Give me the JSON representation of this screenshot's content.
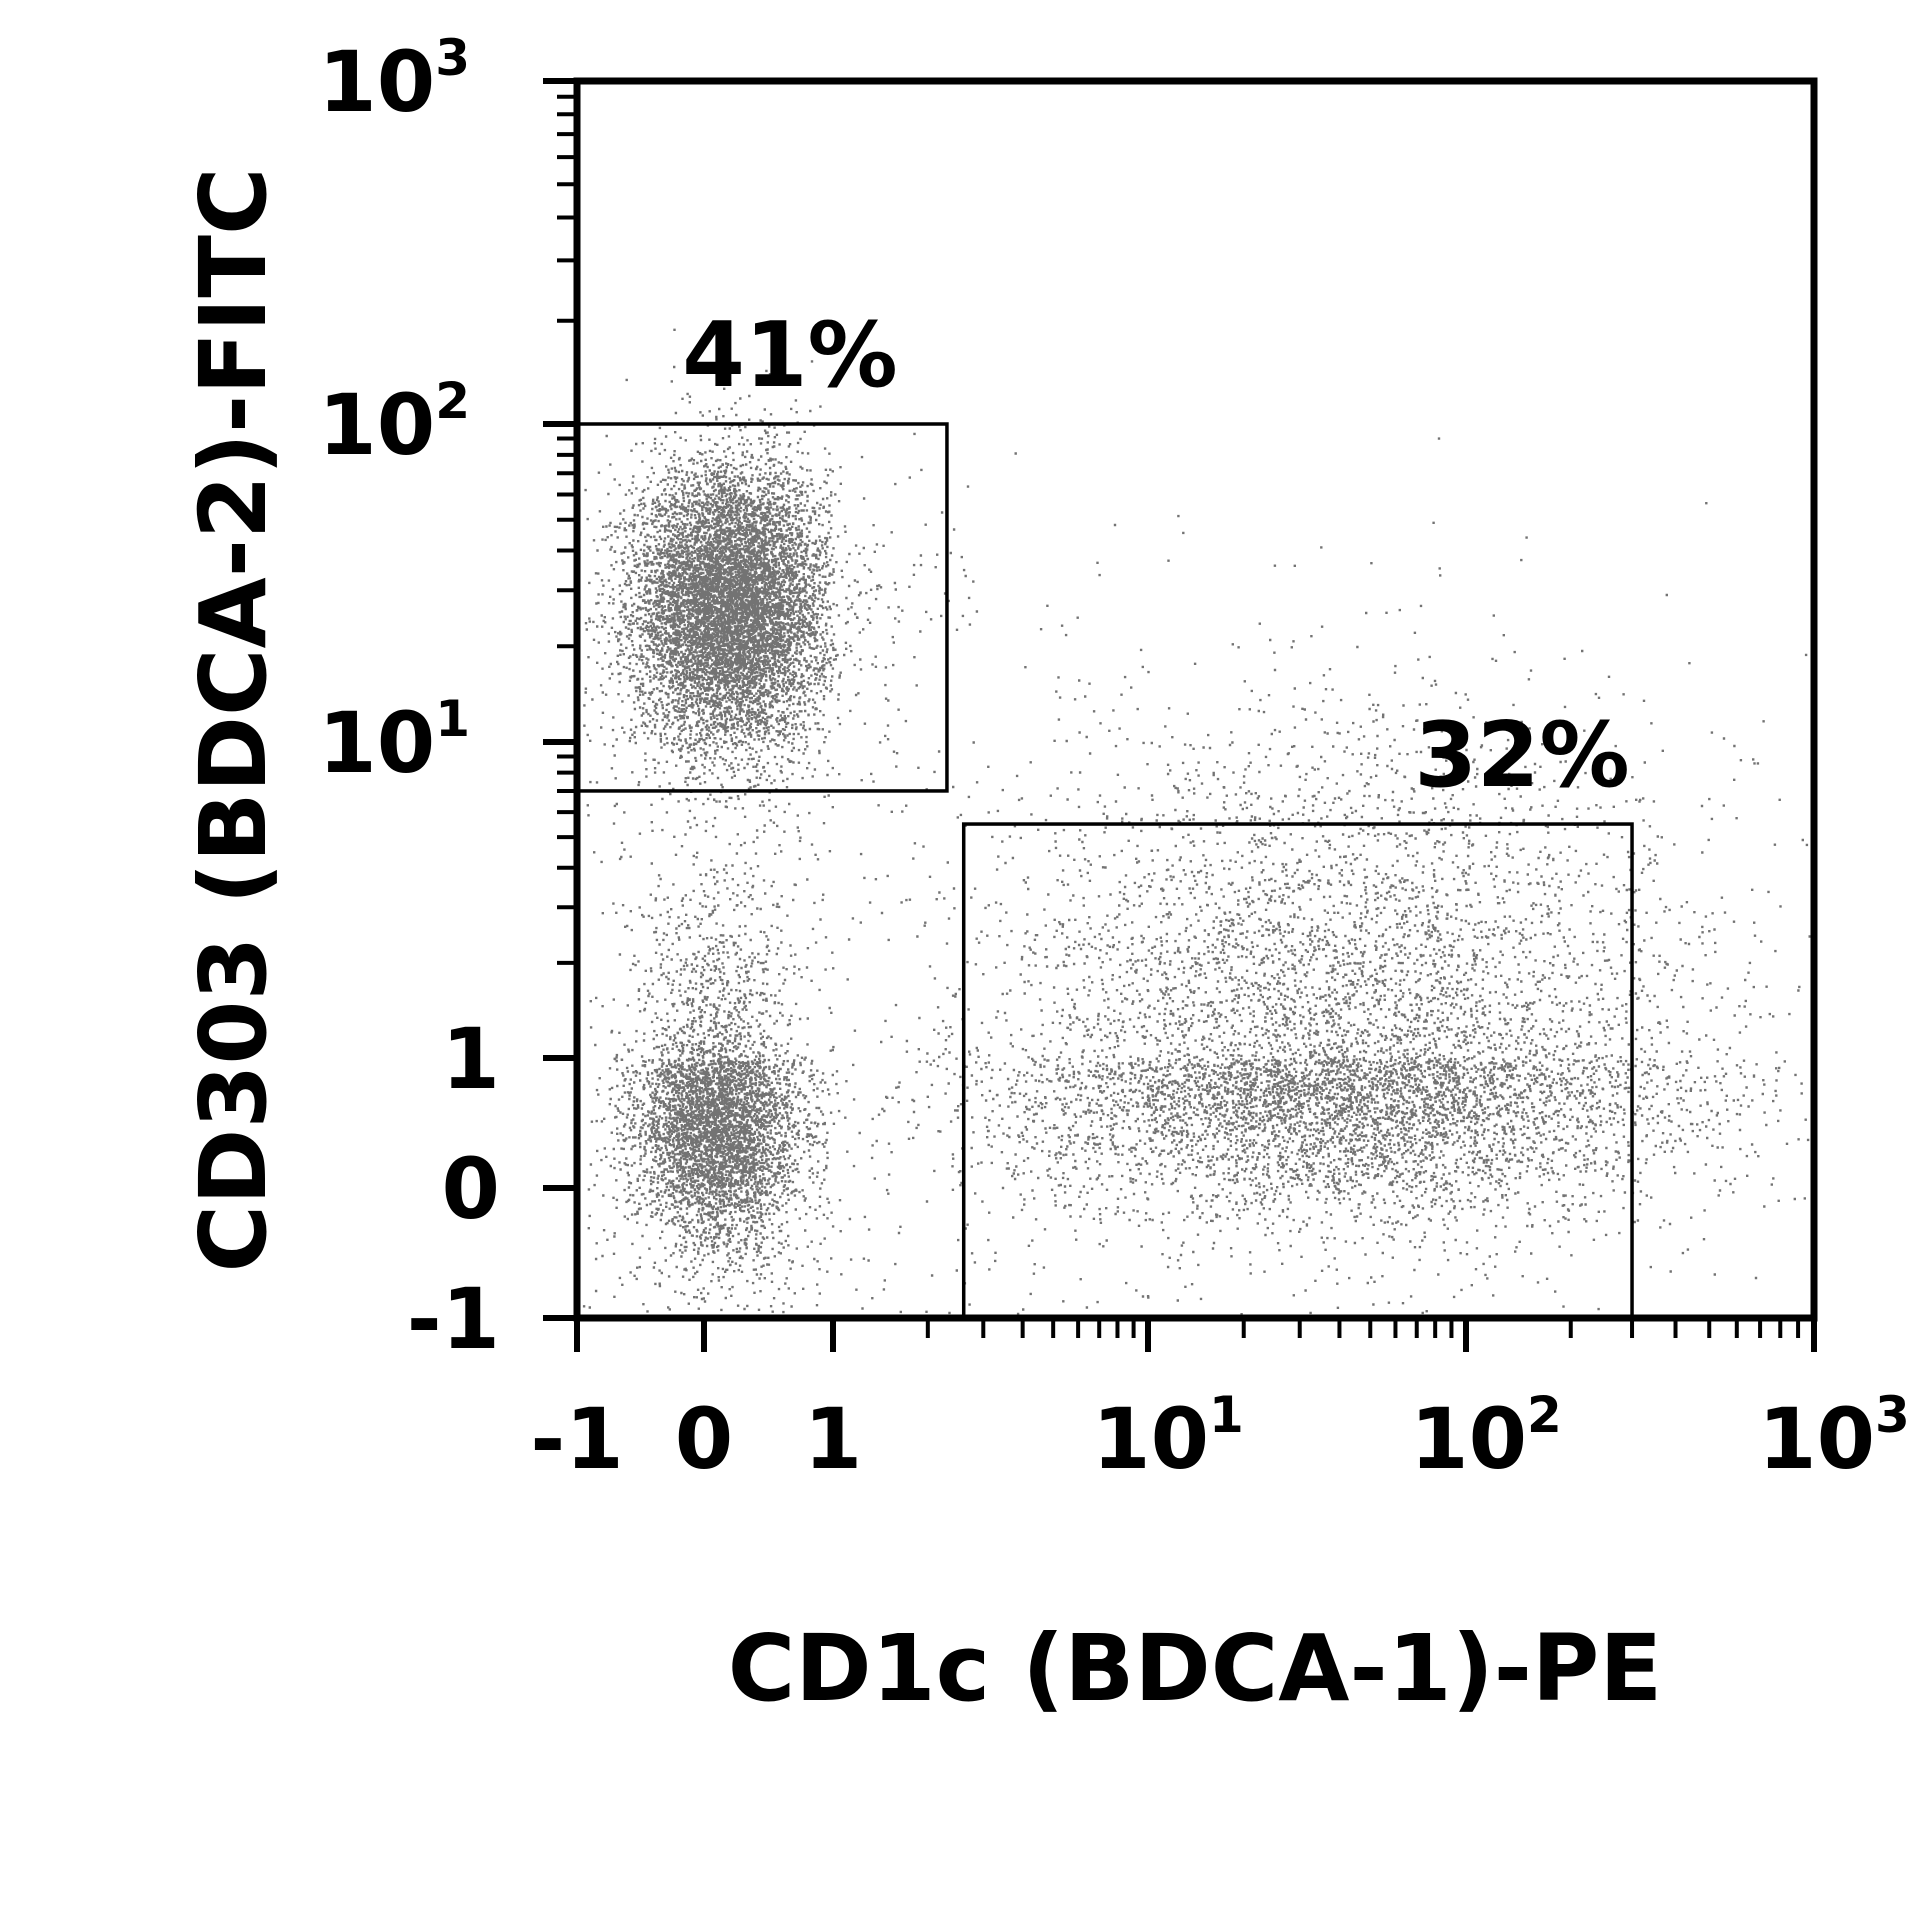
{
  "chart_data": {
    "type": "scatter",
    "subtype": "flow-cytometry-dot-plot",
    "xlabel": "CD1c (BDCA-1)-PE",
    "ylabel": "CD303 (BDCA-2)-FITC",
    "xscale": "biexponential",
    "yscale": "biexponential",
    "xlim": [
      -1,
      1000
    ],
    "ylim": [
      -1,
      1000
    ],
    "x_ticks": [
      {
        "value": -1,
        "base": "-1",
        "exp": ""
      },
      {
        "value": 0,
        "base": "0",
        "exp": ""
      },
      {
        "value": 1,
        "base": "1",
        "exp": ""
      },
      {
        "value": 10,
        "base": "10",
        "exp": "1"
      },
      {
        "value": 100,
        "base": "10",
        "exp": "2"
      },
      {
        "value": 1000,
        "base": "10",
        "exp": "3"
      }
    ],
    "y_ticks": [
      {
        "value": -1,
        "base": "-1",
        "exp": ""
      },
      {
        "value": 0,
        "base": "0",
        "exp": ""
      },
      {
        "value": 1,
        "base": "1",
        "exp": ""
      },
      {
        "value": 10,
        "base": "10",
        "exp": "1"
      },
      {
        "value": 100,
        "base": "10",
        "exp": "2"
      },
      {
        "value": 1000,
        "base": "10",
        "exp": "3"
      }
    ],
    "gates": [
      {
        "name": "CD303+ gate",
        "label": "41%",
        "percent": 41,
        "x_range": [
          -1,
          2.3
        ],
        "y_range": [
          7,
          100
        ]
      },
      {
        "name": "CD1c+ gate",
        "label": "32%",
        "percent": 32,
        "x_range": [
          2.6,
          300
        ],
        "y_range": [
          -1,
          5.5
        ]
      }
    ],
    "populations": [
      {
        "name": "CD303+ cluster",
        "x_center": 0.2,
        "y_center": 27,
        "density": "high"
      },
      {
        "name": "double-negative cluster",
        "x_center": 0.1,
        "y_center": 0.5,
        "density": "medium"
      },
      {
        "name": "CD1c+ cluster",
        "x_center": 40,
        "y_center": 0.9,
        "density": "medium"
      }
    ],
    "grid": false,
    "legend": "none"
  }
}
